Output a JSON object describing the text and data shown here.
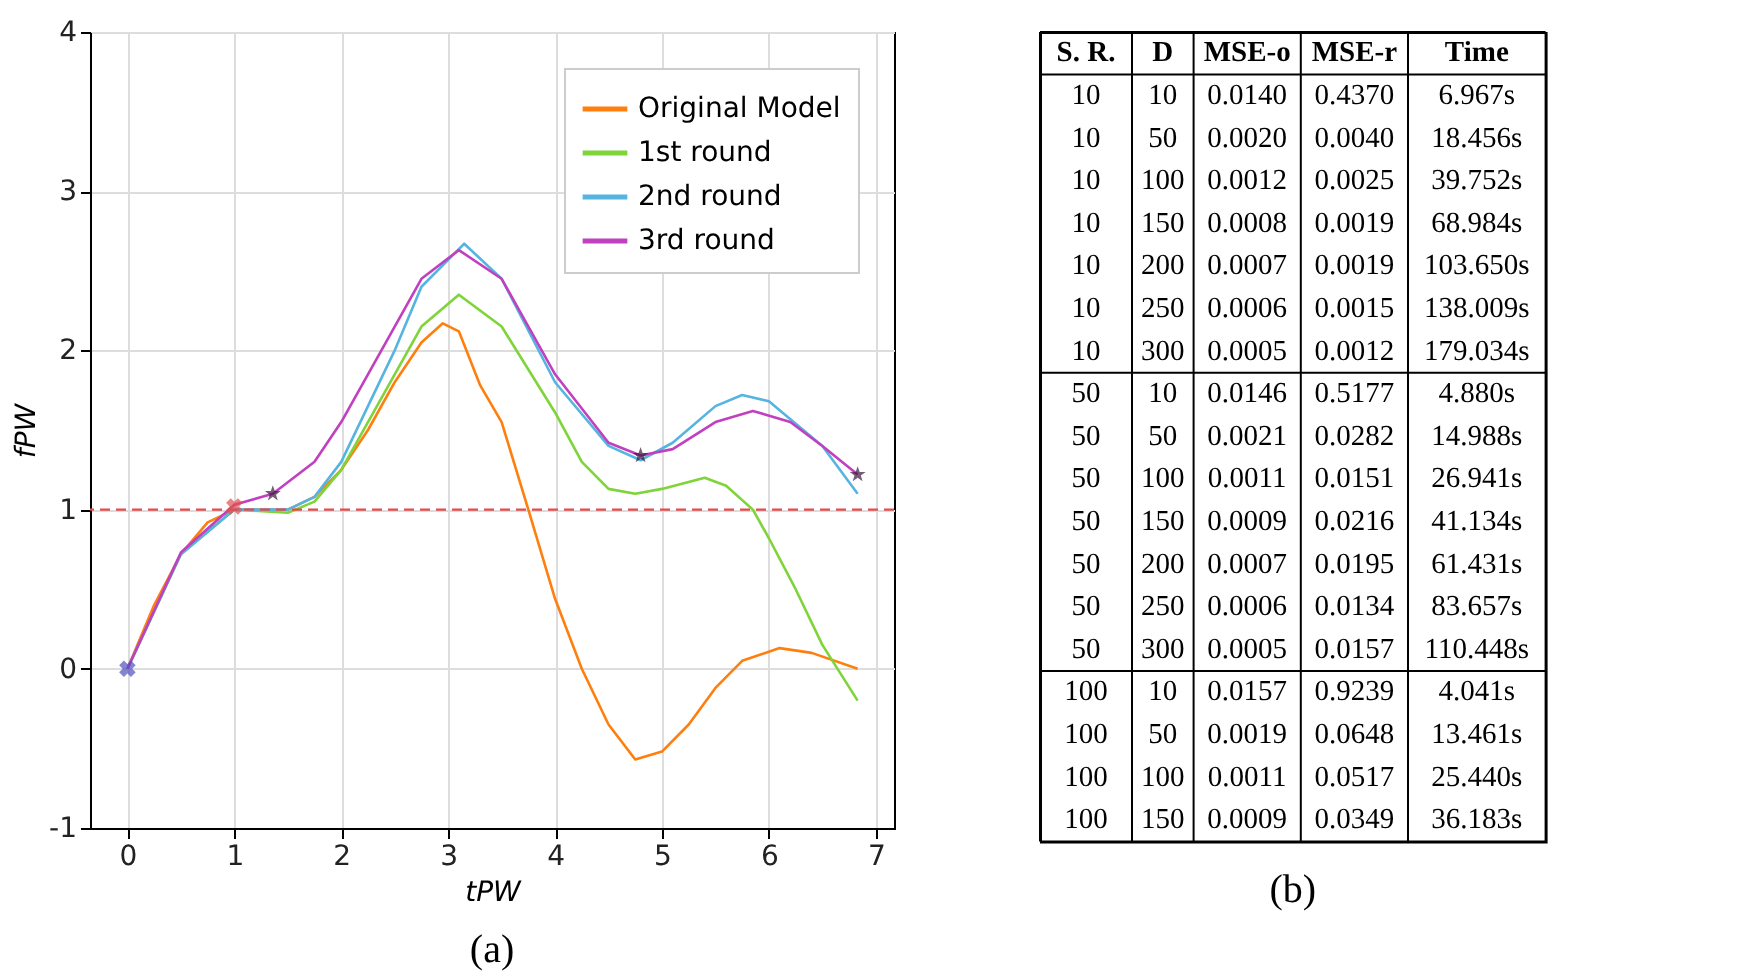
{
  "chart_data": [
    {
      "type": "line",
      "title": "(a)",
      "xlabel": "tPW",
      "ylabel": "fPW",
      "xlim": [
        -0.35,
        7.17
      ],
      "ylim": [
        -1,
        4
      ],
      "xticks": [
        0,
        1,
        2,
        3,
        4,
        5,
        6,
        7
      ],
      "yticks": [
        -1,
        0,
        1,
        2,
        3,
        4
      ],
      "grid": true,
      "legend": "top right",
      "ref_lines": [
        {
          "axis": "y",
          "value": 1,
          "color": "#e84a4a",
          "line_style": "dashed"
        }
      ],
      "series": [
        {
          "name": "Original Model",
          "color": "#ff7f0e",
          "x": [
            0,
            0.25,
            0.5,
            0.75,
            1,
            1.25,
            1.5,
            1.75,
            2,
            2.25,
            2.5,
            2.75,
            2.95,
            3.1,
            3.3,
            3.5,
            3.75,
            4,
            4.25,
            4.5,
            4.75,
            5,
            5.25,
            5.5,
            5.75,
            6.1,
            6.4,
            6.83
          ],
          "values": [
            0,
            0.4,
            0.72,
            0.92,
            1.0,
            1.0,
            1.0,
            1.08,
            1.25,
            1.5,
            1.8,
            2.05,
            2.17,
            2.12,
            1.78,
            1.55,
            1.0,
            0.44,
            0.0,
            -0.35,
            -0.57,
            -0.52,
            -0.35,
            -0.12,
            0.05,
            0.13,
            0.1,
            0.0
          ]
        },
        {
          "name": "1st round",
          "color": "#7fd43a",
          "x": [
            0,
            0.5,
            1,
            1.5,
            1.75,
            2,
            2.5,
            2.75,
            3.1,
            3.5,
            4,
            4.25,
            4.5,
            4.75,
            5,
            5.4,
            5.6,
            5.85,
            6,
            6.25,
            6.5,
            6.83
          ],
          "values": [
            0,
            0.72,
            1.0,
            0.98,
            1.05,
            1.25,
            1.85,
            2.15,
            2.35,
            2.15,
            1.61,
            1.3,
            1.13,
            1.1,
            1.13,
            1.2,
            1.15,
            1.0,
            0.82,
            0.5,
            0.15,
            -0.2
          ]
        },
        {
          "name": "2nd round",
          "color": "#56b4e0",
          "x": [
            0,
            0.5,
            1,
            1.5,
            1.75,
            2,
            2.5,
            2.75,
            3.15,
            3.5,
            4,
            4.5,
            4.8,
            5.1,
            5.5,
            5.75,
            6,
            6.5,
            6.83
          ],
          "values": [
            0,
            0.72,
            1.0,
            1.0,
            1.08,
            1.3,
            2.0,
            2.4,
            2.67,
            2.45,
            1.8,
            1.4,
            1.31,
            1.42,
            1.65,
            1.72,
            1.68,
            1.4,
            1.1
          ]
        },
        {
          "name": "3rd round",
          "color": "#c040c0",
          "x": [
            0,
            0.5,
            1,
            1.36,
            1.75,
            2,
            2.5,
            2.75,
            3.1,
            3.5,
            4,
            4.5,
            4.8,
            5.1,
            5.5,
            5.85,
            6.2,
            6.5,
            6.83
          ],
          "values": [
            0,
            0.73,
            1.03,
            1.1,
            1.3,
            1.55,
            2.15,
            2.45,
            2.63,
            2.45,
            1.85,
            1.42,
            1.34,
            1.38,
            1.55,
            1.62,
            1.55,
            1.4,
            1.22
          ]
        },
        {
          "type": "scatter",
          "marker": "cross",
          "x": [
            0,
            1
          ],
          "values": [
            0,
            1.02
          ],
          "colors": [
            "#5050c0",
            "#e05050"
          ]
        },
        {
          "type": "scatter",
          "marker": "star",
          "x": [
            1.36,
            4.8,
            6.83
          ],
          "values": [
            1.1,
            1.34,
            1.22
          ],
          "color": "#3a1a3a"
        }
      ]
    },
    {
      "type": "other",
      "title": "(b)",
      "categories": [
        "S. R.",
        "D",
        "MSE-o",
        "MSE-r",
        "Time"
      ],
      "annotations": [
        "10",
        "10",
        "0.0140",
        "0.4370",
        "6.967s",
        "10",
        "50",
        "0.0020",
        "0.0040",
        "18.456s",
        "10",
        "100",
        "0.0012",
        "0.0025",
        "39.752s",
        "10",
        "150",
        "0.0008",
        "0.0019",
        "68.984s",
        "10",
        "200",
        "0.0007",
        "0.0019",
        "103.650s",
        "10",
        "250",
        "0.0006",
        "0.0015",
        "138.009s",
        "10",
        "300",
        "0.0005",
        "0.0012",
        "179.034s",
        "50",
        "10",
        "0.0146",
        "0.5177",
        "4.880s",
        "50",
        "50",
        "0.0021",
        "0.0282",
        "14.988s",
        "50",
        "100",
        "0.0011",
        "0.0151",
        "26.941s",
        "50",
        "150",
        "0.0009",
        "0.0216",
        "41.134s",
        "50",
        "200",
        "0.0007",
        "0.0195",
        "61.431s",
        "50",
        "250",
        "0.0006",
        "0.0134",
        "83.657s",
        "50",
        "300",
        "0.0005",
        "0.0157",
        "110.448s",
        "100",
        "10",
        "0.0157",
        "0.9239",
        "4.041s",
        "100",
        "50",
        "0.0019",
        "0.0648",
        "13.461s",
        "100",
        "100",
        "0.0011",
        "0.0517",
        "25.440s",
        "100",
        "150",
        "0.0009",
        "0.0349",
        "36.183s"
      ]
    }
  ]
}
